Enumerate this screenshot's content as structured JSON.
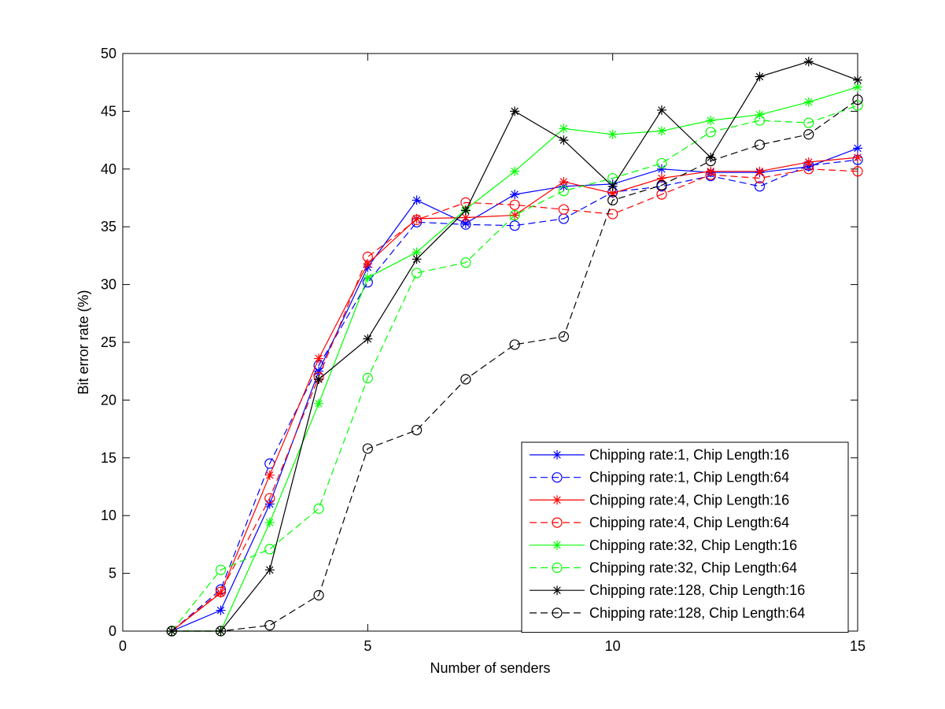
{
  "chart_data": {
    "type": "line",
    "xlabel": "Number of senders",
    "ylabel": "Bit error rate (%)",
    "xlim": [
      0,
      15
    ],
    "ylim": [
      0,
      50
    ],
    "xticks": [
      0,
      5,
      10,
      15
    ],
    "yticks": [
      0,
      5,
      10,
      15,
      20,
      25,
      30,
      35,
      40,
      45,
      50
    ],
    "grid": false,
    "legend_position": "bottom-right",
    "x": [
      1,
      2,
      3,
      4,
      5,
      6,
      7,
      8,
      9,
      10,
      11,
      12,
      13,
      14,
      15
    ],
    "series": [
      {
        "name": "Chipping rate:1, Chip Length:16",
        "color": "#0000ff",
        "style": "solid",
        "marker": "star",
        "values": [
          0,
          1.8,
          11.0,
          22.5,
          31.5,
          37.3,
          35.3,
          37.8,
          38.5,
          38.7,
          40.0,
          39.7,
          39.7,
          40.2,
          41.8
        ]
      },
      {
        "name": "Chipping rate:1, Chip Length:64",
        "color": "#0000ff",
        "style": "dashed",
        "marker": "circle",
        "values": [
          0,
          3.6,
          14.5,
          23.0,
          30.2,
          35.4,
          35.2,
          35.1,
          35.7,
          38.0,
          38.5,
          39.4,
          38.5,
          40.3,
          40.8
        ]
      },
      {
        "name": "Chipping rate:4, Chip Length:16",
        "color": "#ff0000",
        "style": "solid",
        "marker": "star",
        "values": [
          0,
          3.3,
          13.5,
          23.6,
          31.8,
          35.7,
          35.8,
          36.0,
          38.9,
          37.9,
          39.2,
          39.8,
          39.8,
          40.6,
          41.0
        ]
      },
      {
        "name": "Chipping rate:4, Chip Length:64",
        "color": "#ff0000",
        "style": "dashed",
        "marker": "circle",
        "values": [
          0,
          3.4,
          11.5,
          22.0,
          32.4,
          35.6,
          37.1,
          36.9,
          36.5,
          36.1,
          37.8,
          39.5,
          39.2,
          40.0,
          39.8
        ]
      },
      {
        "name": "Chipping rate:32, Chip Length:16",
        "color": "#00ff00",
        "style": "solid",
        "marker": "star",
        "values": [
          0,
          0,
          9.4,
          19.7,
          30.6,
          32.8,
          36.5,
          39.8,
          43.5,
          43.0,
          43.3,
          44.2,
          44.7,
          45.8,
          47.1
        ]
      },
      {
        "name": "Chipping rate:32, Chip Length:64",
        "color": "#00ff00",
        "style": "dashed",
        "marker": "circle",
        "values": [
          0,
          5.3,
          7.1,
          10.6,
          21.9,
          31.0,
          31.9,
          36.0,
          38.1,
          39.2,
          40.5,
          43.2,
          44.2,
          44.0,
          45.5
        ]
      },
      {
        "name": "Chipping rate:128, Chip Length:16",
        "color": "#000000",
        "style": "solid",
        "marker": "star",
        "values": [
          0,
          0,
          5.3,
          21.8,
          25.3,
          32.2,
          36.4,
          45.0,
          42.5,
          38.5,
          45.1,
          41.0,
          48.0,
          49.3,
          47.7
        ]
      },
      {
        "name": "Chipping rate:128, Chip Length:64",
        "color": "#000000",
        "style": "dashed",
        "marker": "circle",
        "values": [
          0,
          0,
          0.5,
          3.1,
          15.8,
          17.4,
          21.8,
          24.8,
          25.5,
          37.3,
          38.6,
          40.7,
          42.1,
          43.0,
          46.0
        ]
      }
    ]
  }
}
